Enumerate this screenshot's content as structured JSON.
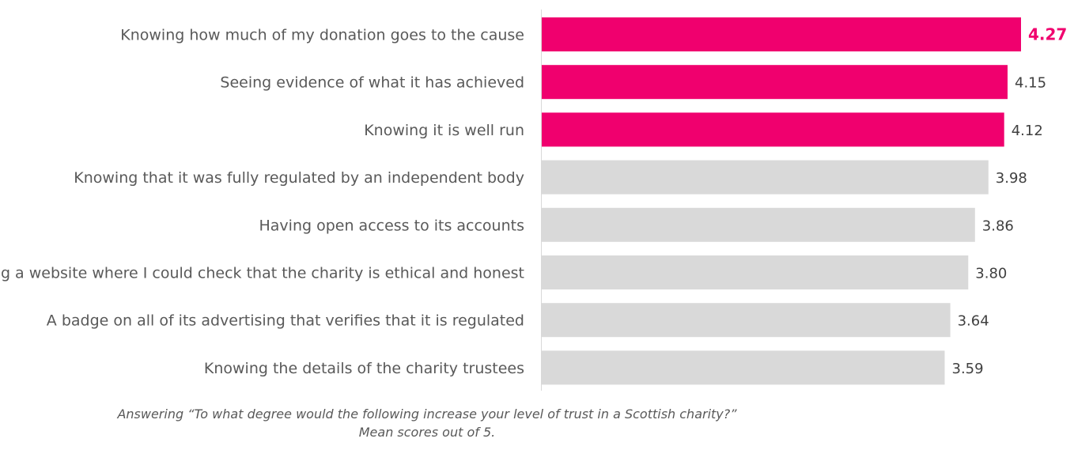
{
  "chart_data": {
    "type": "bar",
    "orientation": "horizontal",
    "categories": [
      "Knowing how much of my donation goes to the cause",
      "Seeing evidence of what it has achieved",
      "Knowing it is well run",
      "Knowing that it was fully regulated by an independent body",
      "Having open access to its accounts",
      "Having a website where I could check that the charity is ethical and honest",
      "A badge on all of its advertising that verifies that it is regulated",
      "Knowing the details of the charity trustees"
    ],
    "values": [
      4.27,
      4.15,
      4.12,
      3.98,
      3.86,
      3.8,
      3.64,
      3.59
    ],
    "value_labels": [
      "4.27",
      "4.15",
      "4.12",
      "3.98",
      "3.86",
      "3.80",
      "3.64",
      "3.59"
    ],
    "highlighted": [
      true,
      true,
      true,
      false,
      false,
      false,
      false,
      false
    ],
    "xlim": [
      0,
      4.27
    ],
    "grid": false,
    "colors": {
      "highlight": "#f0006e",
      "default": "#d9d9d9",
      "axis": "#d9d9d9",
      "label": "#595959",
      "value": "#404040"
    }
  },
  "caption": {
    "line1": "Answering “To what degree would the following increase your level of trust in a Scottish charity?”",
    "line2": "Mean scores out of 5."
  }
}
